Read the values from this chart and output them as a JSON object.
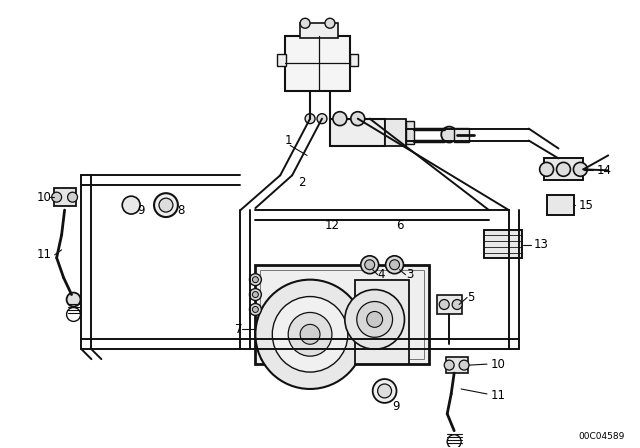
{
  "background_color": "#ffffff",
  "diagram_id": "00C04589",
  "figsize": [
    6.4,
    4.48
  ],
  "dpi": 100,
  "line_color": "#111111",
  "text_color": "#000000",
  "label_fontsize": 8.5,
  "lw_pipe": 1.4,
  "lw_component": 1.3,
  "lw_thin": 0.8
}
